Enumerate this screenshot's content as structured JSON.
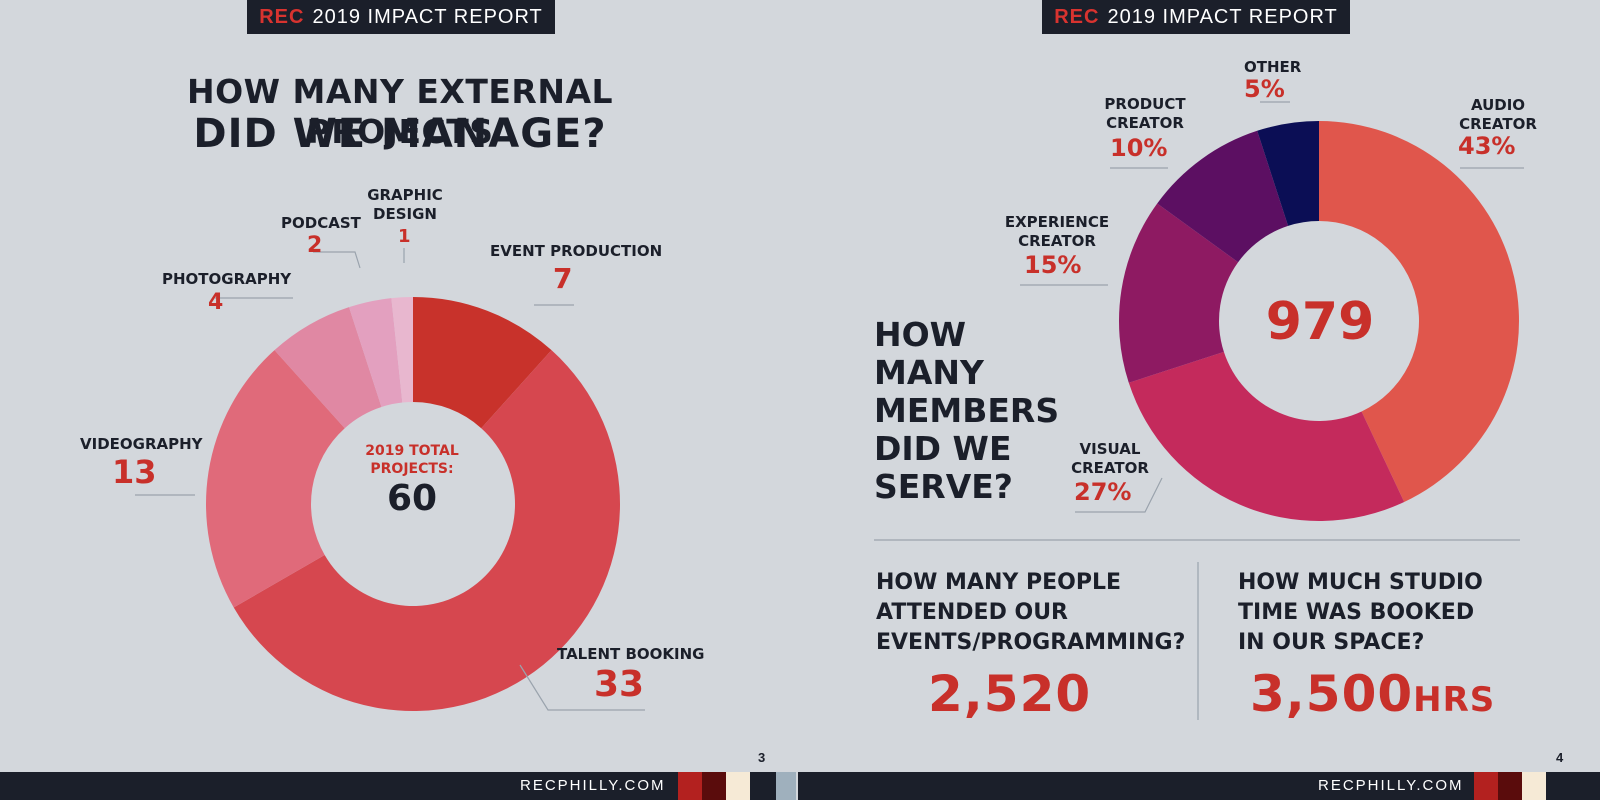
{
  "brand": "REC",
  "report_title": "2019 IMPACT REPORT",
  "website": "RECPHILLY.COM",
  "page3": {
    "number": "3",
    "headline_line1": "HOW MANY EXTERNAL PROJECTS",
    "headline_line2": "DID WE MANAGE?",
    "center_label": "2019 TOTAL PROJECTS:",
    "center_value": "60"
  },
  "page4": {
    "number": "4",
    "headline": "HOW MANY MEMBERS DID WE SERVE?",
    "center_value": "979",
    "attendance": {
      "question": "HOW MANY PEOPLE ATTENDED OUR EVENTS/PROGRAMMING?",
      "value": "2,520"
    },
    "studio": {
      "question": "HOW MUCH STUDIO TIME WAS BOOKED IN OUR SPACE?",
      "value": "3,500",
      "unit": "HRS"
    }
  },
  "chart_data": [
    {
      "type": "pie",
      "title": "HOW MANY EXTERNAL PROJECTS DID WE MANAGE?",
      "total": 60,
      "categories": [
        "EVENT PRODUCTION",
        "TALENT BOOKING",
        "VIDEOGRAPHY",
        "PHOTOGRAPHY",
        "PODCAST",
        "GRAPHIC DESIGN"
      ],
      "values": [
        7,
        33,
        13,
        4,
        2,
        1
      ],
      "display_values": [
        "7",
        "33",
        "13",
        "4",
        "2",
        "1"
      ],
      "colors": [
        "#c8322b",
        "#d6474f",
        "#e06a7a",
        "#e088a3",
        "#e3a0bf",
        "#e8b7cf"
      ]
    },
    {
      "type": "pie",
      "title": "HOW MANY MEMBERS DID WE SERVE?",
      "total": 979,
      "categories": [
        "AUDIO CREATOR",
        "VISUAL CREATOR",
        "EXPERIENCE CREATOR",
        "PRODUCT CREATOR",
        "OTHER"
      ],
      "values": [
        43,
        27,
        15,
        10,
        5
      ],
      "display_values": [
        "43%",
        "27%",
        "15%",
        "10%",
        "5%"
      ],
      "colors": [
        "#e0564c",
        "#c42a5c",
        "#8e1a62",
        "#5c0f62",
        "#0b0e55"
      ]
    }
  ],
  "footer_colors": [
    "#b3211f",
    "#5a0c0c",
    "#f6ead6",
    "#9fb0bd"
  ]
}
